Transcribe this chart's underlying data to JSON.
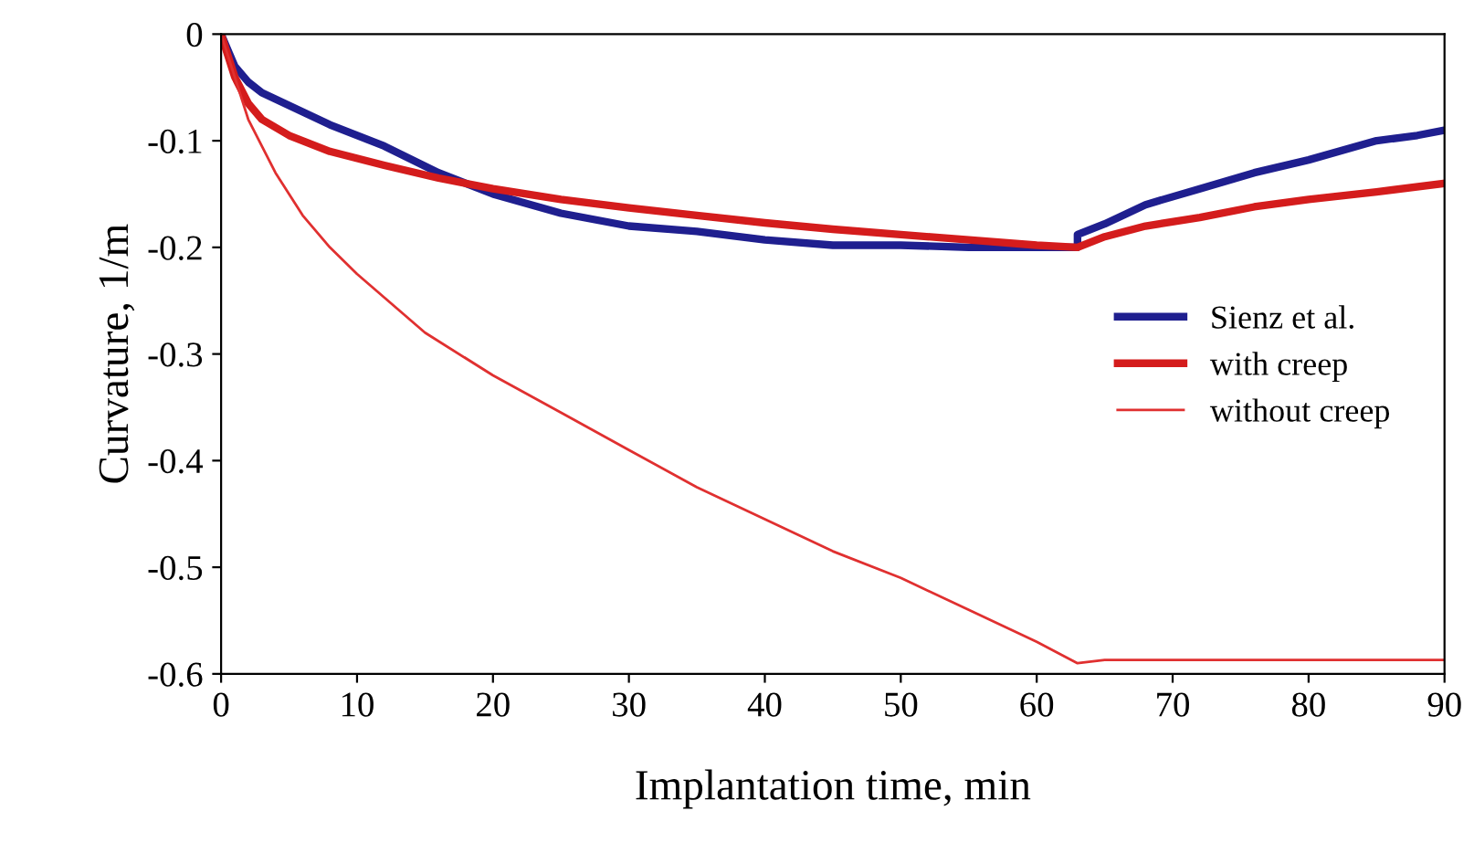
{
  "chart_data": {
    "type": "line",
    "xlabel": "Implantation time, min",
    "ylabel": "Curvature, 1/m",
    "xlim": [
      0,
      90
    ],
    "ylim": [
      -0.6,
      0
    ],
    "xticks": [
      0,
      10,
      20,
      30,
      40,
      50,
      60,
      70,
      80,
      90
    ],
    "yticks": [
      -0.6,
      -0.5,
      -0.4,
      -0.3,
      -0.2,
      -0.1,
      0
    ],
    "grid": false,
    "legend": "right",
    "marker": "none",
    "line_style": "solid",
    "series": [
      {
        "name": "Sienz et al.",
        "color": "#1f1f8f",
        "x": [
          0,
          1,
          2,
          3,
          5,
          8,
          12,
          16,
          20,
          25,
          30,
          35,
          40,
          45,
          50,
          55,
          60,
          63,
          63,
          65,
          68,
          72,
          76,
          80,
          85,
          88,
          90
        ],
        "values": [
          0,
          -0.03,
          -0.045,
          -0.055,
          -0.067,
          -0.085,
          -0.105,
          -0.13,
          -0.15,
          -0.168,
          -0.18,
          -0.185,
          -0.193,
          -0.198,
          -0.198,
          -0.2,
          -0.2,
          -0.2,
          -0.188,
          -0.178,
          -0.16,
          -0.145,
          -0.13,
          -0.118,
          -0.1,
          -0.095,
          -0.09
        ]
      },
      {
        "name": "with creep",
        "color": "#d41c1c",
        "x": [
          0,
          1,
          2,
          3,
          5,
          8,
          12,
          16,
          20,
          25,
          30,
          35,
          40,
          45,
          50,
          55,
          60,
          63,
          65,
          68,
          72,
          76,
          80,
          85,
          90
        ],
        "values": [
          0,
          -0.04,
          -0.065,
          -0.08,
          -0.095,
          -0.11,
          -0.123,
          -0.135,
          -0.145,
          -0.155,
          -0.163,
          -0.17,
          -0.177,
          -0.183,
          -0.188,
          -0.193,
          -0.198,
          -0.2,
          -0.19,
          -0.18,
          -0.172,
          -0.162,
          -0.155,
          -0.148,
          -0.14
        ]
      },
      {
        "name": "without creep",
        "color": "#e03030",
        "x": [
          0,
          1,
          2,
          4,
          6,
          8,
          10,
          15,
          20,
          25,
          30,
          35,
          40,
          45,
          50,
          55,
          60,
          63,
          65,
          70,
          80,
          90
        ],
        "values": [
          0,
          -0.04,
          -0.08,
          -0.13,
          -0.17,
          -0.2,
          -0.225,
          -0.28,
          -0.32,
          -0.355,
          -0.39,
          -0.425,
          -0.455,
          -0.485,
          -0.51,
          -0.54,
          -0.57,
          -0.59,
          -0.587,
          -0.587,
          -0.587,
          -0.587
        ]
      }
    ]
  }
}
